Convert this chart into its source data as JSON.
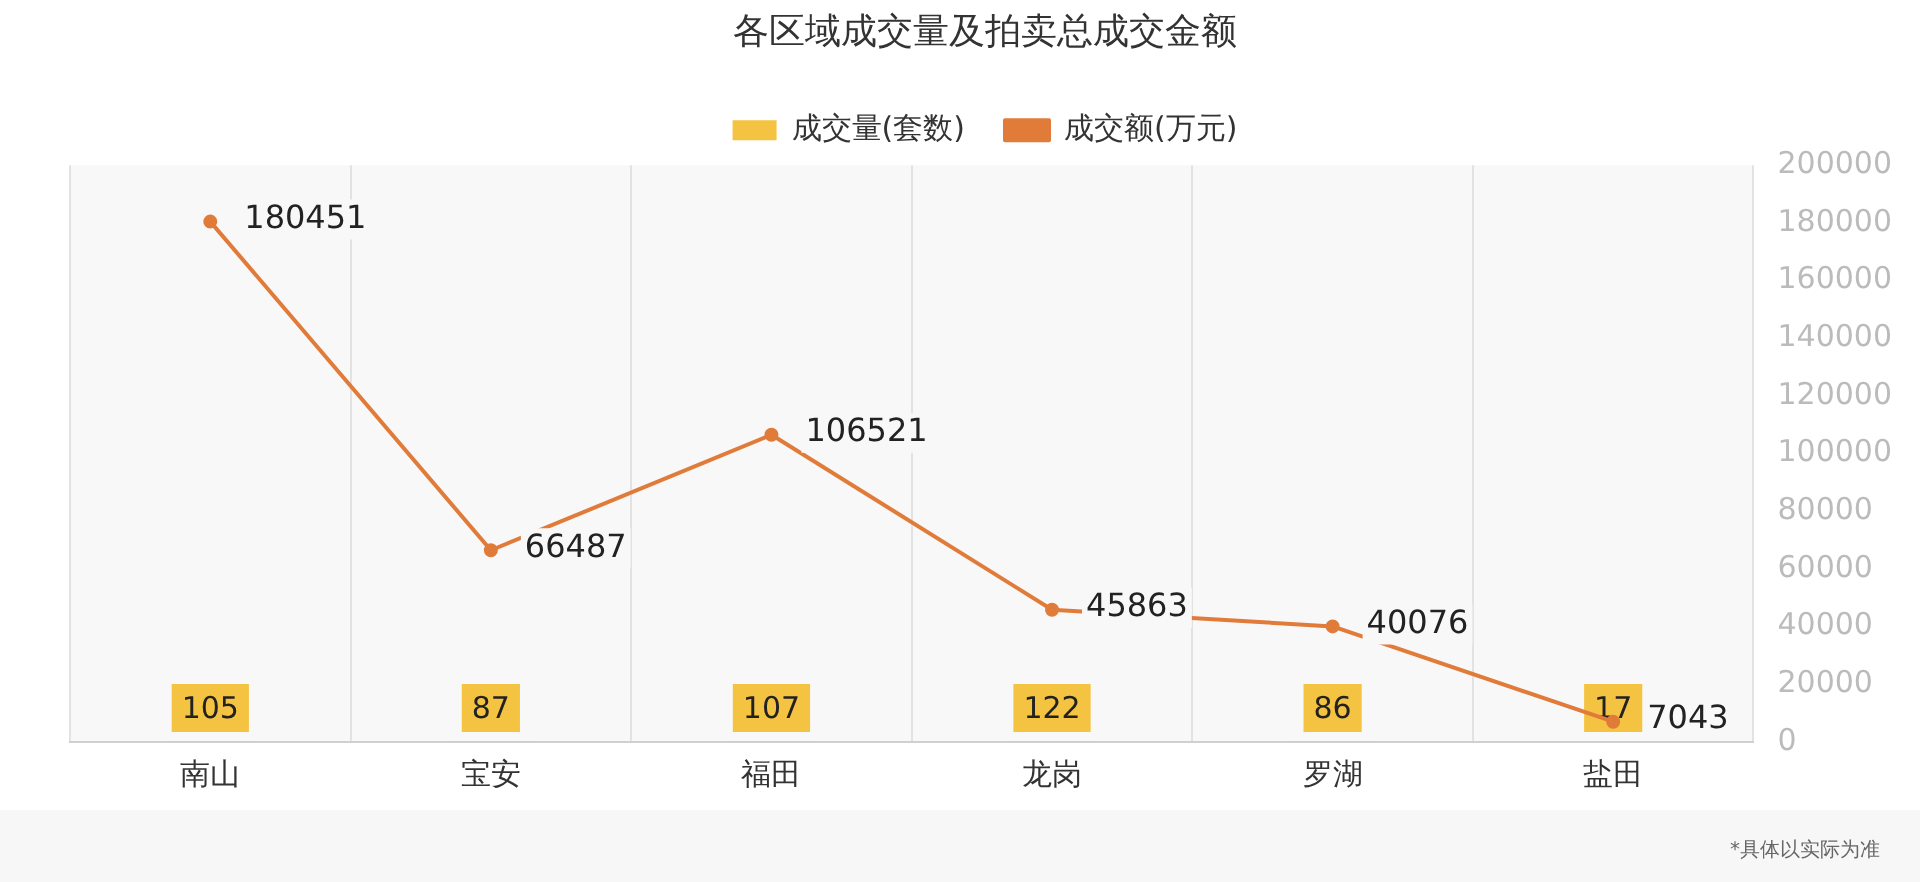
{
  "chart_data": {
    "type": "bar",
    "title": "各区域成交量及拍卖总成交金额",
    "categories": [
      "南山",
      "宝安",
      "福田",
      "龙岗",
      "罗湖",
      "盐田"
    ],
    "series": [
      {
        "name": "成交量(套数)",
        "color": "#f5c342",
        "values": [
          105,
          87,
          107,
          122,
          86,
          17
        ]
      },
      {
        "name": "成交额(万元)",
        "type": "line",
        "color": "#e07b39",
        "values": [
          180451,
          66487,
          106521,
          45863,
          40076,
          7043
        ]
      }
    ],
    "ylim": [
      0,
      200000
    ],
    "yticks": [
      0,
      20000,
      40000,
      60000,
      80000,
      100000,
      120000,
      140000,
      160000,
      180000,
      200000
    ],
    "data_labels": true,
    "legend": "top",
    "grid": "x",
    "marker": "circle",
    "line_style": "solid",
    "annotations": [
      "*具体以实际为准"
    ]
  }
}
